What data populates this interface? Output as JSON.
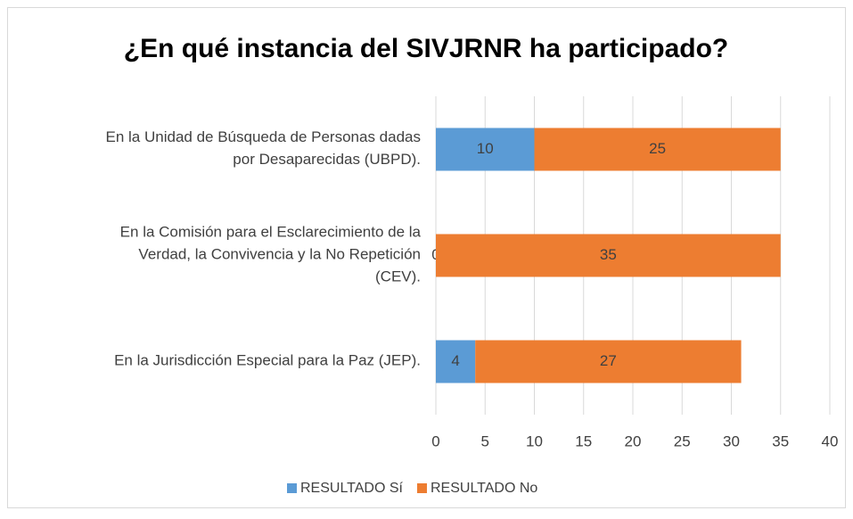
{
  "chart_data": {
    "type": "bar",
    "orientation": "horizontal",
    "stacked": true,
    "title": "¿En qué instancia del SIVJRNR ha participado?",
    "categories": [
      "En la Unidad de Búsqueda de Personas dadas\npor Desaparecidas (UBPD).",
      "En la Comisión para el Esclarecimiento de la\nVerdad, la Convivencia y la No Repetición\n(CEV).",
      "En la Jurisdicción Especial para la Paz (JEP)."
    ],
    "series": [
      {
        "name": "RESULTADO Sí",
        "color": "#5b9bd5",
        "values": [
          10,
          0,
          4
        ]
      },
      {
        "name": "RESULTADO No",
        "color": "#ed7d31",
        "values": [
          25,
          35,
          27
        ]
      }
    ],
    "xlim": [
      0,
      40
    ],
    "xticks": [
      0,
      5,
      10,
      15,
      20,
      25,
      30,
      35,
      40
    ],
    "grid": true,
    "legend": "bottom"
  }
}
